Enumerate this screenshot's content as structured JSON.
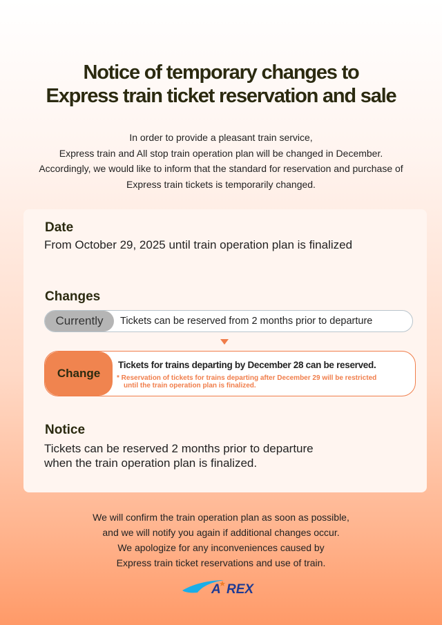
{
  "title": [
    "Notice of temporary changes to",
    "Express train ticket reservation and sale"
  ],
  "intro": [
    "In order to provide a pleasant train service,",
    "Express train and All stop train operation plan will be changed in December.",
    "Accordingly, we would like to inform that the standard for reservation and purchase of",
    "Express train tickets is temporarily changed."
  ],
  "date": {
    "heading": "Date",
    "text": "From October 29, 2025 until train operation plan is finalized"
  },
  "changes": {
    "heading": "Changes",
    "current_label": "Currently",
    "current_text": "Tickets can be reserved from 2 months prior to departure",
    "change_label": "Change",
    "change_text": "Tickets for trains departing by December 28 can be reserved.",
    "note_lines": [
      "* Reservation of tickets for trains departing after December 29 will be restricted",
      "until the train operation plan is finalized."
    ]
  },
  "notice": {
    "heading": "Notice",
    "lines": [
      "Tickets can be reserved 2 months prior to departure",
      "when the train operation plan is finalized."
    ]
  },
  "footer": [
    "We will confirm the train operation plan as soon as possible,",
    "and we will notify you again if additional changes occur.",
    "We apologize for any inconveniences caused by",
    "Express train ticket reservations and use of train."
  ],
  "logo": {
    "text": "AREX",
    "colors": {
      "swoosh": "#1aaee8",
      "text": "#1f3a93",
      "star": "#f07d2a"
    }
  },
  "colors": {
    "accent": "#f07d4a",
    "heading": "#2b2a10"
  }
}
